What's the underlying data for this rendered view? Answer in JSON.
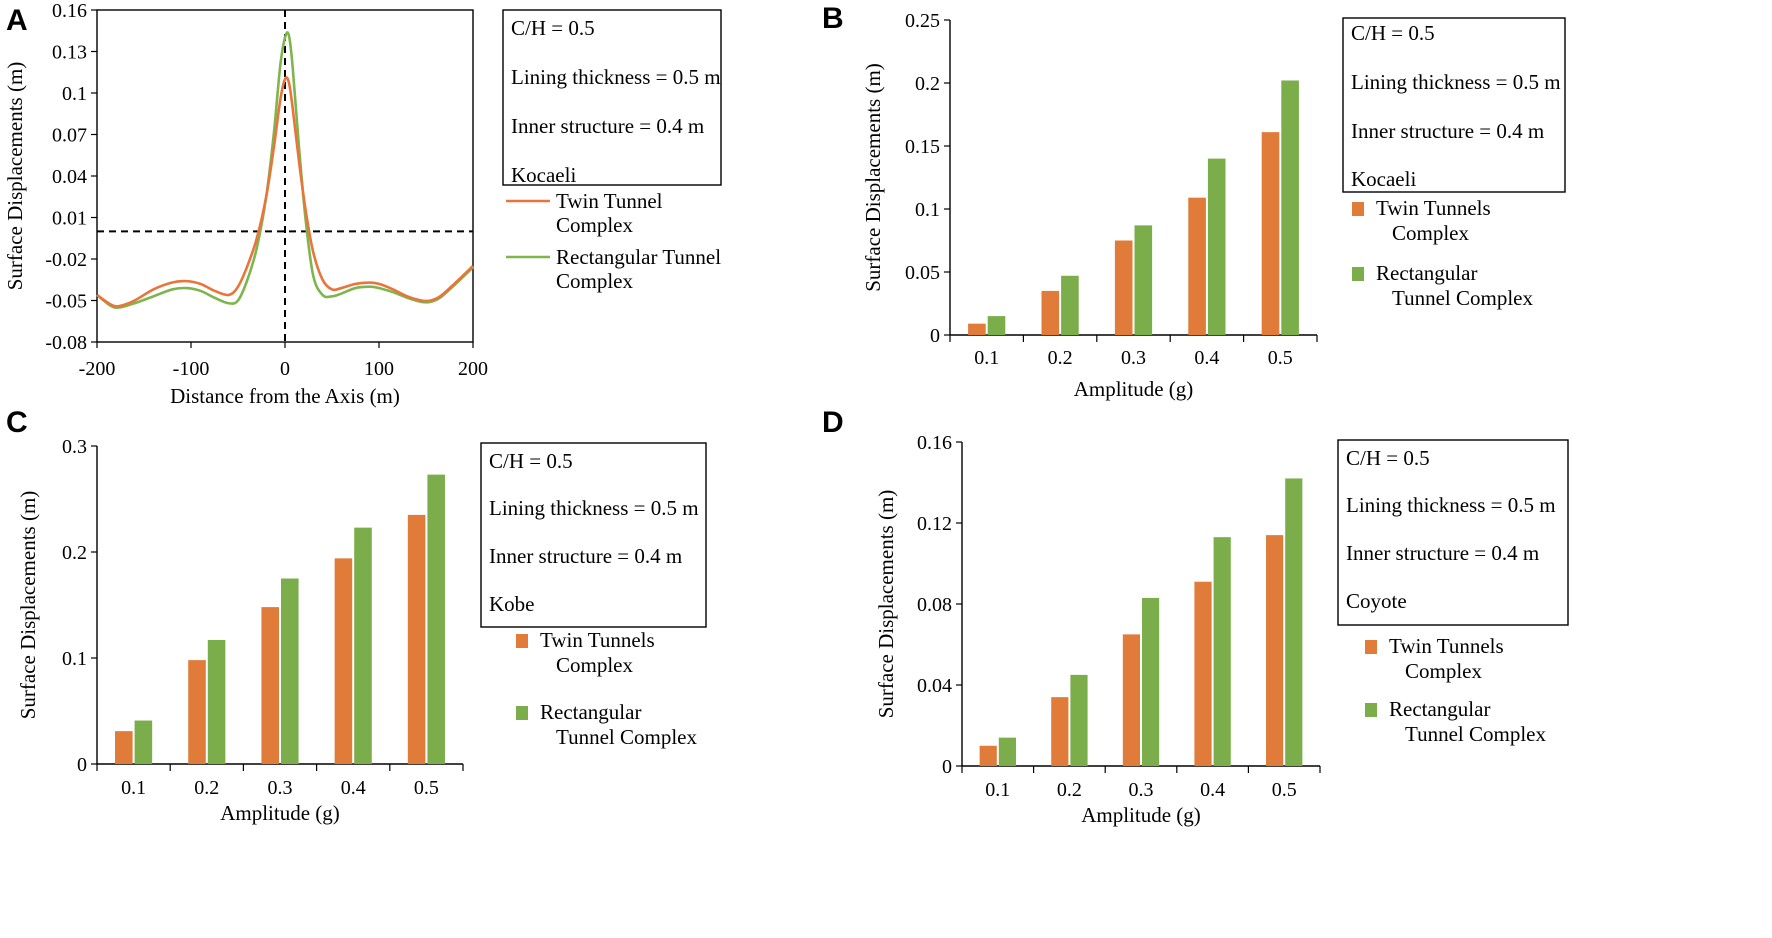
{
  "colors": {
    "twin": "#E07B39",
    "rect": "#7BAE4A",
    "twin_line": "#E8753A",
    "rect_line": "#7EB54E"
  },
  "chart_data": [
    {
      "panel": "A",
      "type": "line",
      "xlabel": "Distance from the Axis (m)",
      "ylabel": "Surface Displacements (m)",
      "xlim": [
        -200,
        200
      ],
      "ylim": [
        -0.08,
        0.16
      ],
      "xticks": [
        "-200",
        "-100",
        "0",
        "100",
        "200"
      ],
      "yticks": [
        "-0.08",
        "-0.05",
        "-0.02",
        "0.01",
        "0.04",
        "0.07",
        "0.1",
        "0.13",
        "0.16"
      ],
      "x": [
        -200,
        -185,
        -176,
        -160,
        -140,
        -120,
        -105,
        -90,
        -75,
        -60,
        -50,
        -40,
        -30,
        -20,
        -12,
        -5,
        0,
        4,
        8,
        15,
        22,
        30,
        40,
        50,
        60,
        75,
        90,
        100,
        115,
        130,
        145,
        155,
        165,
        180,
        200
      ],
      "series": [
        {
          "name_line1": "Twin Tunnel",
          "name_line2": "Complex",
          "values": [
            -0.046,
            -0.053,
            -0.054,
            -0.05,
            -0.042,
            -0.037,
            -0.036,
            -0.038,
            -0.043,
            -0.046,
            -0.04,
            -0.025,
            -0.005,
            0.025,
            0.06,
            0.095,
            0.11,
            0.108,
            0.09,
            0.05,
            0.015,
            -0.015,
            -0.035,
            -0.042,
            -0.041,
            -0.038,
            -0.037,
            -0.038,
            -0.042,
            -0.047,
            -0.05,
            -0.05,
            -0.047,
            -0.038,
            -0.025
          ]
        },
        {
          "name_line1": "Rectangular Tunnel",
          "name_line2": "Complex",
          "values": [
            -0.046,
            -0.054,
            -0.055,
            -0.052,
            -0.047,
            -0.042,
            -0.041,
            -0.043,
            -0.048,
            -0.052,
            -0.05,
            -0.035,
            -0.012,
            0.025,
            0.07,
            0.12,
            0.14,
            0.142,
            0.12,
            0.06,
            0.008,
            -0.032,
            -0.046,
            -0.047,
            -0.045,
            -0.041,
            -0.04,
            -0.041,
            -0.044,
            -0.048,
            -0.051,
            -0.051,
            -0.048,
            -0.039,
            -0.026
          ]
        }
      ],
      "info": [
        "C/H = 0.5",
        "Lining thickness = 0.5 m",
        "Inner structure = 0.4 m",
        "Kocaeli"
      ]
    },
    {
      "panel": "B",
      "type": "bar",
      "xlabel": "Amplitude (g)",
      "ylabel": "Surface Displacements (m)",
      "ylim": [
        0,
        0.25
      ],
      "yticks": [
        "0",
        "0.05",
        "0.1",
        "0.15",
        "0.2",
        "0.25"
      ],
      "categories": [
        "0.1",
        "0.2",
        "0.3",
        "0.4",
        "0.5"
      ],
      "series": [
        {
          "name_line1": "Twin Tunnels",
          "name_line2": "Complex",
          "values": [
            0.009,
            0.035,
            0.075,
            0.109,
            0.161
          ]
        },
        {
          "name_line1": "Rectangular",
          "name_line2": "Tunnel Complex",
          "values": [
            0.015,
            0.047,
            0.087,
            0.14,
            0.202
          ]
        }
      ],
      "info": [
        "C/H = 0.5",
        "Lining thickness = 0.5 m",
        "Inner structure = 0.4 m",
        "Kocaeli"
      ]
    },
    {
      "panel": "C",
      "type": "bar",
      "xlabel": "Amplitude (g)",
      "ylabel": "Surface Displacements (m)",
      "ylim": [
        0,
        0.3
      ],
      "yticks": [
        "0",
        "0.1",
        "0.2",
        "0.3"
      ],
      "categories": [
        "0.1",
        "0.2",
        "0.3",
        "0.4",
        "0.5"
      ],
      "series": [
        {
          "name_line1": "Twin Tunnels",
          "name_line2": "Complex",
          "values": [
            0.031,
            0.098,
            0.148,
            0.194,
            0.235
          ]
        },
        {
          "name_line1": "Rectangular",
          "name_line2": "Tunnel Complex",
          "values": [
            0.041,
            0.117,
            0.175,
            0.223,
            0.273
          ]
        }
      ],
      "info": [
        "C/H = 0.5",
        "Lining thickness = 0.5 m",
        "Inner structure = 0.4 m",
        "Kobe"
      ]
    },
    {
      "panel": "D",
      "type": "bar",
      "xlabel": "Amplitude (g)",
      "ylabel": "Surface Displacements (m)",
      "ylim": [
        0,
        0.16
      ],
      "yticks": [
        "0",
        "0.04",
        "0.08",
        "0.12",
        "0.16"
      ],
      "categories": [
        "0.1",
        "0.2",
        "0.3",
        "0.4",
        "0.5"
      ],
      "series": [
        {
          "name_line1": "Twin Tunnels",
          "name_line2": "Complex",
          "values": [
            0.01,
            0.034,
            0.065,
            0.091,
            0.114
          ]
        },
        {
          "name_line1": "Rectangular",
          "name_line2": "Tunnel Complex",
          "values": [
            0.014,
            0.045,
            0.083,
            0.113,
            0.142
          ]
        }
      ],
      "info": [
        "C/H = 0.5",
        "Lining thickness = 0.5 m",
        "Inner structure = 0.4 m",
        "Coyote"
      ]
    }
  ]
}
